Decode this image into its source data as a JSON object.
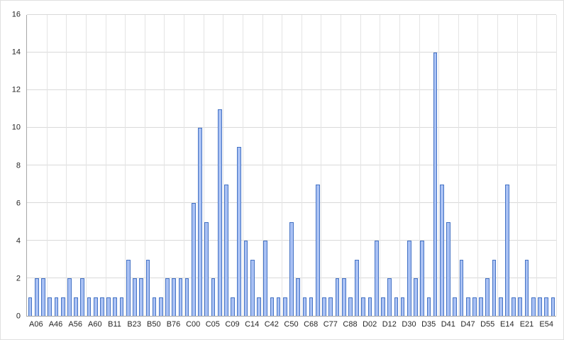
{
  "chart_data": {
    "type": "bar",
    "title": "",
    "xlabel": "",
    "ylabel": "",
    "ylim": [
      0,
      16
    ],
    "ytick_step": 2,
    "grid": true,
    "legend_position": "none",
    "bars_per_category_label": 3,
    "categories": [
      "A06",
      "A46",
      "A56",
      "A60",
      "B11",
      "B23",
      "B50",
      "B76",
      "C00",
      "C05",
      "C09",
      "C14",
      "C42",
      "C50",
      "C68",
      "C77",
      "C88",
      "D02",
      "D12",
      "D30",
      "D35",
      "D41",
      "D47",
      "D55",
      "E14",
      "E21",
      "E54"
    ],
    "values": [
      1,
      2,
      2,
      1,
      1,
      1,
      2,
      1,
      2,
      1,
      1,
      1,
      1,
      1,
      1,
      3,
      2,
      2,
      3,
      1,
      1,
      2,
      2,
      2,
      2,
      6,
      10,
      5,
      2,
      11,
      7,
      1,
      9,
      4,
      3,
      1,
      4,
      1,
      1,
      1,
      5,
      2,
      1,
      1,
      7,
      1,
      1,
      2,
      2,
      1,
      3,
      1,
      1,
      4,
      1,
      2,
      1,
      1,
      4,
      2,
      4,
      1,
      14,
      7,
      5,
      1,
      3,
      1,
      1,
      1,
      2,
      3,
      1,
      7,
      1,
      1,
      3,
      1,
      1,
      1,
      1
    ]
  },
  "style": {
    "bar_fill": "#a9c1f4",
    "bar_border": "#4472c4",
    "gridline_h_color": "#d9d9d9",
    "gridline_v_color": "#e4e4e4",
    "axis_line_color": "#a6a6a6",
    "tick_label_color": "#262626",
    "background": "#ffffff"
  }
}
